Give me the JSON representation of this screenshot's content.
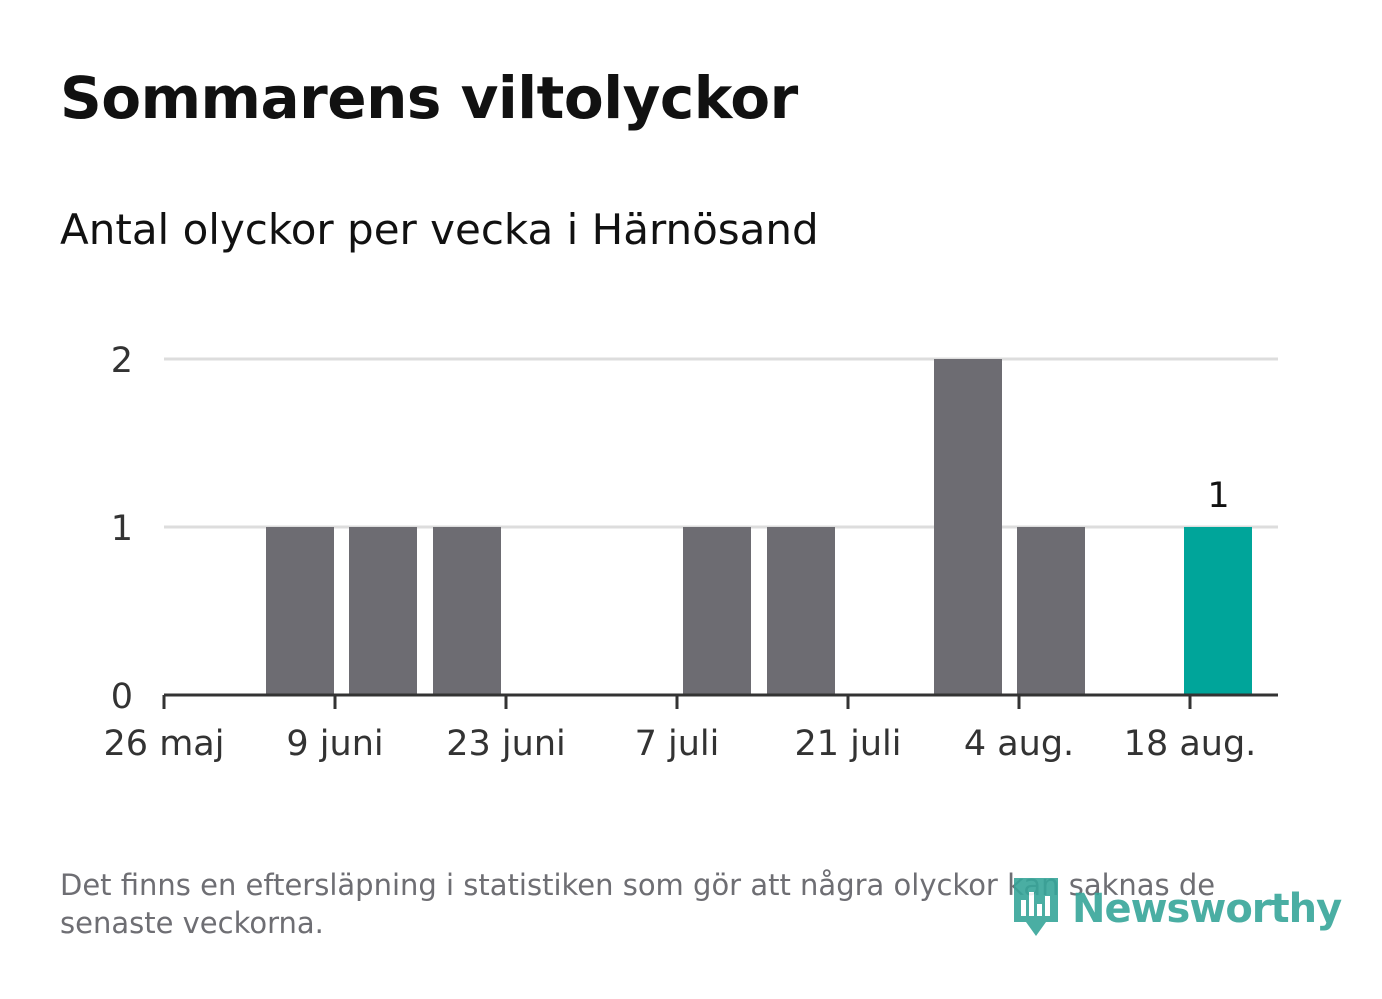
{
  "title": "Sommarens viltolyckor",
  "subtitle": "Antal olyckor per vecka i Härnösand",
  "footnote": "Det finns en eftersläpning i statistiken som gör att några olyckor kan saknas de senaste veckorna.",
  "brand": {
    "name": "Newsworthy",
    "icon": "bar-chart-speech-bubble-logo",
    "color": "#37a69a"
  },
  "colors": {
    "bar": "#6d6c72",
    "highlight": "#00a59a",
    "grid": "#dddddd",
    "axis": "#333333"
  },
  "chart_data": {
    "type": "bar",
    "x": [
      "2024-05-26",
      "2024-06-02",
      "2024-06-09",
      "2024-06-16",
      "2024-06-23",
      "2024-06-30",
      "2024-07-07",
      "2024-07-14",
      "2024-07-21",
      "2024-07-28",
      "2024-08-04",
      "2024-08-11",
      "2024-08-18"
    ],
    "values": [
      0,
      1,
      1,
      1,
      0,
      0,
      1,
      1,
      0,
      2,
      1,
      0,
      1
    ],
    "highlight_index": 12,
    "highlight_label": "1",
    "ylim": [
      0,
      2
    ],
    "yticks": [
      0,
      1,
      2
    ],
    "xticks": [
      "26 maj",
      "9 juni",
      "23 juni",
      "7 juli",
      "21 juli",
      "4 aug.",
      "18 aug."
    ],
    "grid": true,
    "xlabel": "",
    "ylabel": ""
  }
}
